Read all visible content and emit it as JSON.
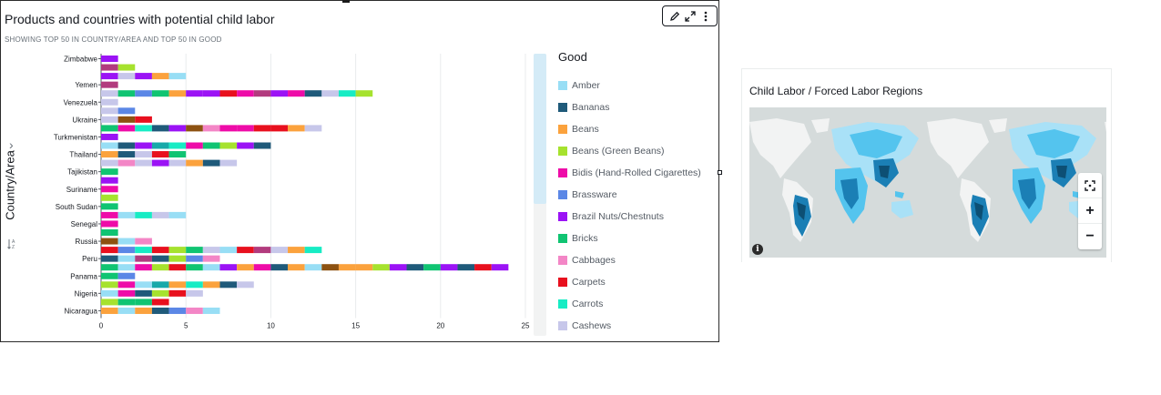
{
  "visual_left": {
    "title": "Products and countries with potential child labor",
    "subtitle": "SHOWING TOP 50 IN COUNTRY/AREA AND TOP 50 IN GOOD",
    "y_axis_title": "Country/Area",
    "legend_title": "Good",
    "toolbar": [
      "edit-icon",
      "expand-icon",
      "menu-icon"
    ]
  },
  "visual_right": {
    "title": "Child Labor / Forced Labor Regions",
    "controls": [
      "fullscreen-icon",
      "zoom-in-icon",
      "zoom-out-icon"
    ],
    "colors": {
      "water": "#d5dbdb",
      "land": "#f2f3f3",
      "light": "#a9e1f7",
      "mid": "#54c4ee",
      "dark": "#1b7fb5",
      "darkest": "#0d4f74"
    }
  },
  "chart_data": {
    "type": "bar",
    "orientation": "horizontal",
    "stacked": true,
    "title": "Products and countries with potential child labor",
    "subtitle": "SHOWING TOP 50 IN COUNTRY/AREA AND TOP 50 IN GOOD",
    "ylabel": "Country/Area",
    "xlabel": "",
    "xlim": [
      0,
      25
    ],
    "xticks": [
      0,
      5,
      10,
      15,
      20,
      25
    ],
    "grid": true,
    "legend_position": "right",
    "legend": [
      {
        "name": "Amber",
        "color": "#98def5"
      },
      {
        "name": "Bananas",
        "color": "#1f5a7a"
      },
      {
        "name": "Beans",
        "color": "#fba23d"
      },
      {
        "name": "Beans (Green Beans)",
        "color": "#a6e22e"
      },
      {
        "name": "Bidis (Hand-Rolled Cigarettes)",
        "color": "#ee0ca8"
      },
      {
        "name": "Brassware",
        "color": "#5b87e6"
      },
      {
        "name": "Brazil Nuts/Chestnuts",
        "color": "#9b13f5"
      },
      {
        "name": "Bricks",
        "color": "#10c472"
      },
      {
        "name": "Cabbages",
        "color": "#f386c6"
      },
      {
        "name": "Carpets",
        "color": "#e8101e"
      },
      {
        "name": "Carrots",
        "color": "#17ecc4"
      },
      {
        "name": "Cashews",
        "color": "#c7c7ea"
      }
    ],
    "palette_extra": [
      "#1f5a7a",
      "#9b13f5",
      "#8d5211",
      "#b23b7e",
      "#17a9a9",
      "#10c472",
      "#e8101e",
      "#a6e22e",
      "#ee0ca8",
      "#5b87e6",
      "#fba23d",
      "#98def5",
      "#f386c6",
      "#c7c7ea",
      "#17ecc4"
    ],
    "country_labels": [
      "Zimbabwe",
      "Yemen",
      "Venezuela",
      "Ukraine",
      "Turkmenistan",
      "Thailand",
      "Tajikistan",
      "Suriname",
      "South Sudan",
      "Senegal",
      "Russia",
      "Peru",
      "Panama",
      "Nigeria",
      "Nicaragua"
    ],
    "bars": [
      {
        "country": "Zimbabwe",
        "total": 1
      },
      {
        "country": "Zimbabwe",
        "total": 2
      },
      {
        "country": "Zimbabwe",
        "total": 5
      },
      {
        "country": "Yemen",
        "total": 1
      },
      {
        "country": "Yemen",
        "total": 16
      },
      {
        "country": "Venezuela",
        "total": 1
      },
      {
        "country": "Venezuela",
        "total": 2
      },
      {
        "country": "Ukraine",
        "total": 3
      },
      {
        "country": "Ukraine",
        "total": 13
      },
      {
        "country": "Turkmenistan",
        "total": 1
      },
      {
        "country": "Turkmenistan",
        "total": 10
      },
      {
        "country": "Thailand",
        "total": 5
      },
      {
        "country": "Thailand",
        "total": 8
      },
      {
        "country": "Tajikistan",
        "total": 1
      },
      {
        "country": "Tajikistan",
        "total": 1
      },
      {
        "country": "Suriname",
        "total": 1
      },
      {
        "country": "Suriname",
        "total": 1
      },
      {
        "country": "South Sudan",
        "total": 1
      },
      {
        "country": "South Sudan",
        "total": 5
      },
      {
        "country": "Senegal",
        "total": 1
      },
      {
        "country": "Senegal",
        "total": 1
      },
      {
        "country": "Russia",
        "total": 3
      },
      {
        "country": "Russia",
        "total": 13
      },
      {
        "country": "Peru",
        "total": 7
      },
      {
        "country": "Peru",
        "total": 24
      },
      {
        "country": "Panama",
        "total": 2
      },
      {
        "country": "Panama",
        "total": 9
      },
      {
        "country": "Nigeria",
        "total": 6
      },
      {
        "country": "Nigeria",
        "total": 4
      },
      {
        "country": "Nicaragua",
        "total": 7
      }
    ]
  }
}
